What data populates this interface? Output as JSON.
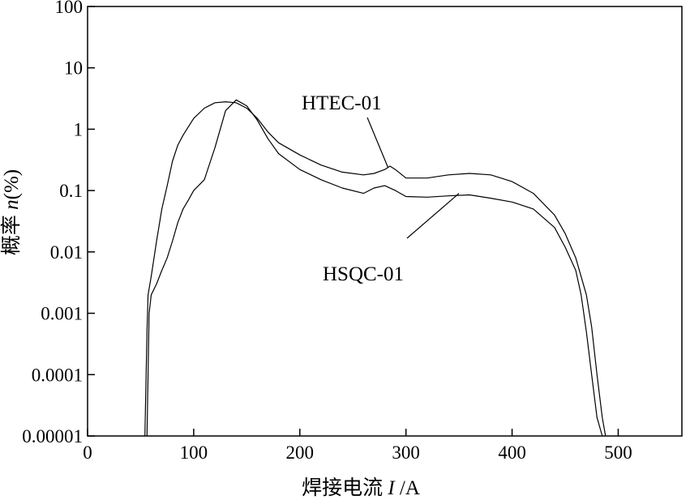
{
  "chart_data": {
    "type": "line",
    "xlabel_prefix": "焊接电流 ",
    "xlabel_var": "I",
    "xlabel_suffix": " /A",
    "ylabel_prefix": "概率 ",
    "ylabel_var": "n",
    "ylabel_suffix": "(%)",
    "xlim": [
      0,
      560
    ],
    "ylim": [
      1e-05,
      100
    ],
    "yscale": "log",
    "x_ticks": [
      0,
      100,
      200,
      300,
      400,
      500
    ],
    "x_tick_labels": [
      "0",
      "100",
      "200",
      "300",
      "400",
      "500"
    ],
    "y_ticks": [
      1e-05,
      0.0001,
      0.001,
      0.01,
      0.1,
      1,
      10,
      100
    ],
    "y_tick_labels": [
      "0.00001",
      "0.0001",
      "0.001",
      "0.01",
      "0.1",
      "1",
      "10",
      "100"
    ],
    "grid": false,
    "series": [
      {
        "name": "HTEC-01",
        "x": [
          54,
          56,
          57,
          60,
          65,
          70,
          75,
          80,
          85,
          90,
          100,
          110,
          120,
          130,
          140,
          150,
          160,
          170,
          180,
          200,
          220,
          240,
          260,
          270,
          280,
          285,
          290,
          300,
          320,
          340,
          360,
          380,
          400,
          420,
          440,
          450,
          460,
          470,
          475,
          480,
          485,
          488
        ],
        "y": [
          1e-05,
          0.0005,
          0.002,
          0.004,
          0.015,
          0.05,
          0.12,
          0.3,
          0.55,
          0.8,
          1.5,
          2.2,
          2.7,
          2.8,
          2.7,
          2.2,
          1.5,
          0.9,
          0.6,
          0.38,
          0.26,
          0.2,
          0.18,
          0.19,
          0.22,
          0.25,
          0.22,
          0.16,
          0.16,
          0.18,
          0.19,
          0.18,
          0.14,
          0.09,
          0.04,
          0.02,
          0.008,
          0.002,
          0.0006,
          0.0001,
          2e-05,
          1e-05
        ]
      },
      {
        "name": "HSQC-01",
        "x": [
          56,
          58,
          60,
          65,
          70,
          75,
          80,
          85,
          90,
          95,
          100,
          110,
          120,
          130,
          140,
          150,
          160,
          170,
          180,
          200,
          220,
          240,
          260,
          270,
          280,
          290,
          300,
          320,
          340,
          360,
          380,
          400,
          420,
          440,
          450,
          460,
          465,
          470,
          475,
          480,
          485
        ],
        "y": [
          1e-05,
          0.001,
          0.002,
          0.003,
          0.005,
          0.008,
          0.015,
          0.03,
          0.05,
          0.07,
          0.1,
          0.15,
          0.5,
          2.0,
          3.0,
          2.4,
          1.4,
          0.7,
          0.4,
          0.22,
          0.15,
          0.11,
          0.09,
          0.11,
          0.12,
          0.1,
          0.08,
          0.078,
          0.082,
          0.085,
          0.075,
          0.065,
          0.05,
          0.025,
          0.012,
          0.005,
          0.002,
          0.0005,
          0.0001,
          2e-05,
          1e-05
        ]
      }
    ],
    "annotations": [
      {
        "text": "HTEC-01",
        "series": 0,
        "point_x": 283,
        "point_y": 0.24
      },
      {
        "text": "HSQC-01",
        "series": 1,
        "point_x": 350,
        "point_y": 0.09
      }
    ]
  }
}
